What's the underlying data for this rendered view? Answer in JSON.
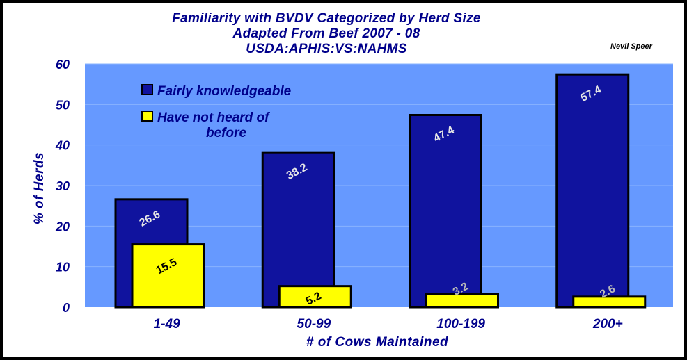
{
  "title_lines": [
    "Familiarity with BVDV Categorized by Herd Size",
    "Adapted From Beef 2007 - 08",
    "USDA:APHIS:VS:NAHMS"
  ],
  "author": "Nevil Speer",
  "chart_data": {
    "type": "bar",
    "title": "Familiarity with BVDV Categorized by Herd Size",
    "subtitle": "Adapted From Beef 2007 - 08 / USDA:APHIS:VS:NAHMS",
    "xlabel": "# of Cows Maintained",
    "ylabel": "% of Herds",
    "categories": [
      "1-49",
      "50-99",
      "100-199",
      "200+"
    ],
    "ylim": [
      0,
      60
    ],
    "yticks": [
      0,
      10,
      20,
      30,
      40,
      50,
      60
    ],
    "grid": true,
    "legend_position": "top-left",
    "series": [
      {
        "name": "Fairly knowledgeable",
        "legend_lines": [
          "Fairly knowledgeable"
        ],
        "color": "#10139e",
        "label_color": "#e6e6e6",
        "values": [
          26.6,
          38.2,
          47.4,
          57.4
        ],
        "labels": [
          "26.6",
          "38.2",
          "47.4",
          "57.4"
        ]
      },
      {
        "name": "Have not heard of before",
        "legend_lines": [
          "Have not heard of",
          "before"
        ],
        "color": "#ffff00",
        "label_color_high": "#000000",
        "label_color_low": "#b8b8b8",
        "values": [
          15.5,
          5.2,
          3.2,
          2.6
        ],
        "labels": [
          "15.5",
          "5.2",
          "3.2",
          "2.6"
        ]
      }
    ],
    "colors": {
      "plot_background": "#6699ff",
      "gridline": "#8ab4ff",
      "text": "#00008b"
    }
  }
}
